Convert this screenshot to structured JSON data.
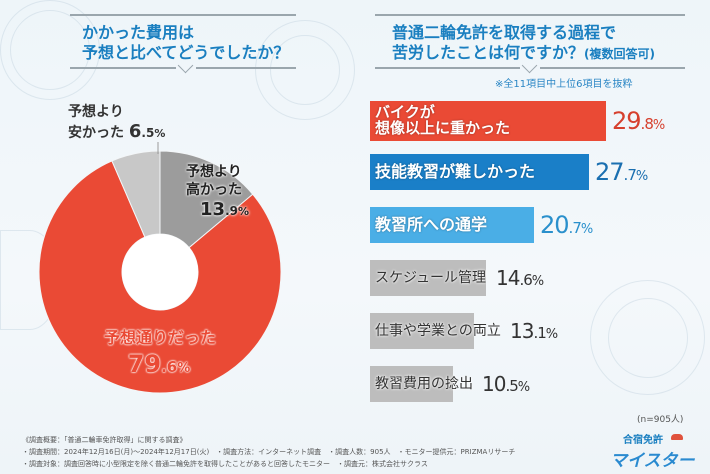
{
  "left_panel": {
    "question_line1": "かかった費用は",
    "question_line2": "予想と比べてどうでしたか？"
  },
  "right_panel": {
    "question_line1": "普通二輪免許を取得する過程で",
    "question_line2": "苦労したことは何ですか？",
    "question_suffix": "(複数回答可)",
    "note": "※全11項目中上位6項目を抜粋",
    "sample_size": "(n=905人)"
  },
  "colors": {
    "red": "#ea4a35",
    "dark_gray": "#9c9c9c",
    "light_gray": "#c8c8c8",
    "blue": "#1a7fc8",
    "light_blue": "#4aaee6",
    "bar_gray": "#bdbdbd",
    "title_blue": "#1a7fc0"
  },
  "chart_data": [
    {
      "type": "pie",
      "title": "かかった費用は予想と比べてどうでしたか？",
      "donut": true,
      "slices": [
        {
          "label_line1": "予想より",
          "label_line2": "高かった",
          "value": 13.9,
          "int": "13",
          "dec": ".9",
          "color": "#9c9c9c"
        },
        {
          "label_line1": "予想通りだった",
          "label_line2": "",
          "value": 79.6,
          "int": "79",
          "dec": ".6",
          "color": "#ea4a35"
        },
        {
          "label_line1": "予想より",
          "label_line2": "安かった",
          "value": 6.5,
          "int": "6",
          "dec": ".5",
          "color": "#c8c8c8"
        }
      ],
      "unit": "%"
    },
    {
      "type": "bar",
      "orientation": "horizontal",
      "title": "普通二輪免許を取得する過程で苦労したことは何ですか？(複数回答可)",
      "unit": "%",
      "xlim": [
        0,
        29.8
      ],
      "categories": [
        "バイクが想像以上に重かった",
        "技能教習が難しかった",
        "教習所への通学",
        "スケジュール管理",
        "仕事や学業との両立",
        "教習費用の捻出"
      ],
      "bars": [
        {
          "label_line1": "バイクが",
          "label_line2": "想像以上に重かった",
          "value": 29.8,
          "int": "29",
          "dec": ".8",
          "color": "#ea4a35",
          "value_color": "#d6402e"
        },
        {
          "label_line1": "技能教習が難しかった",
          "label_line2": "",
          "value": 27.7,
          "int": "27",
          "dec": ".7",
          "color": "#1a7fc8",
          "value_color": "#1a6fb0"
        },
        {
          "label_line1": "教習所への通学",
          "label_line2": "",
          "value": 20.7,
          "int": "20",
          "dec": ".7",
          "color": "#4aaee6",
          "value_color": "#2a90cc"
        },
        {
          "label_line1": "スケジュール管理",
          "label_line2": "",
          "value": 14.6,
          "int": "14",
          "dec": ".6",
          "color": "#bdbdbd",
          "value_color": "#333333"
        },
        {
          "label_line1": "仕事や学業との両立",
          "label_line2": "",
          "value": 13.1,
          "int": "13",
          "dec": ".1",
          "color": "#bdbdbd",
          "value_color": "#333333"
        },
        {
          "label_line1": "教習費用の捻出",
          "label_line2": "",
          "value": 10.5,
          "int": "10",
          "dec": ".5",
          "color": "#bdbdbd",
          "value_color": "#333333"
        }
      ]
    }
  ],
  "footer": {
    "line1": "《調査概要：「普通二輪車免許取得」に関する調査》",
    "line2": "・調査期間：2024年12月16日(月)～2024年12月17日(火)　・調査方法：インターネット調査　・調査人数：905人　・モニター提供元：PRIZMAリサーチ",
    "line3": "・調査対象：調査回答時に小型限定を除く普通二輪免許を取得したことがあると回答したモニター　・調査元：株式会社サクラス"
  },
  "logo": {
    "line1": "合宿免許",
    "line2": "マイスター"
  }
}
